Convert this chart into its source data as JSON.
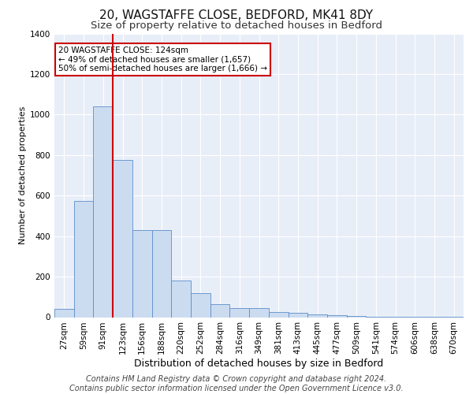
{
  "title1": "20, WAGSTAFFE CLOSE, BEDFORD, MK41 8DY",
  "title2": "Size of property relative to detached houses in Bedford",
  "xlabel": "Distribution of detached houses by size in Bedford",
  "ylabel": "Number of detached properties",
  "categories": [
    "27sqm",
    "59sqm",
    "91sqm",
    "123sqm",
    "156sqm",
    "188sqm",
    "220sqm",
    "252sqm",
    "284sqm",
    "316sqm",
    "349sqm",
    "381sqm",
    "413sqm",
    "445sqm",
    "477sqm",
    "509sqm",
    "541sqm",
    "574sqm",
    "606sqm",
    "638sqm",
    "670sqm"
  ],
  "values": [
    40,
    575,
    1040,
    775,
    430,
    430,
    180,
    120,
    65,
    45,
    45,
    25,
    20,
    15,
    10,
    5,
    2,
    2,
    2,
    2,
    2
  ],
  "bar_color": "#ccdcf0",
  "bar_edge_color": "#5b8dc8",
  "vline_x_index": 2,
  "vline_color": "#cc0000",
  "ylim": [
    0,
    1400
  ],
  "yticks": [
    0,
    200,
    400,
    600,
    800,
    1000,
    1200,
    1400
  ],
  "annotation_text": "20 WAGSTAFFE CLOSE: 124sqm\n← 49% of detached houses are smaller (1,657)\n50% of semi-detached houses are larger (1,666) →",
  "annotation_box_color": "#ffffff",
  "annotation_box_edge": "#cc0000",
  "footer1": "Contains HM Land Registry data © Crown copyright and database right 2024.",
  "footer2": "Contains public sector information licensed under the Open Government Licence v3.0.",
  "plot_bg_color": "#e8eef8",
  "grid_color": "#ffffff",
  "title1_fontsize": 11,
  "title2_fontsize": 9.5,
  "xlabel_fontsize": 9,
  "ylabel_fontsize": 8,
  "tick_fontsize": 7.5,
  "footer_fontsize": 7,
  "annotation_fontsize": 7.5
}
